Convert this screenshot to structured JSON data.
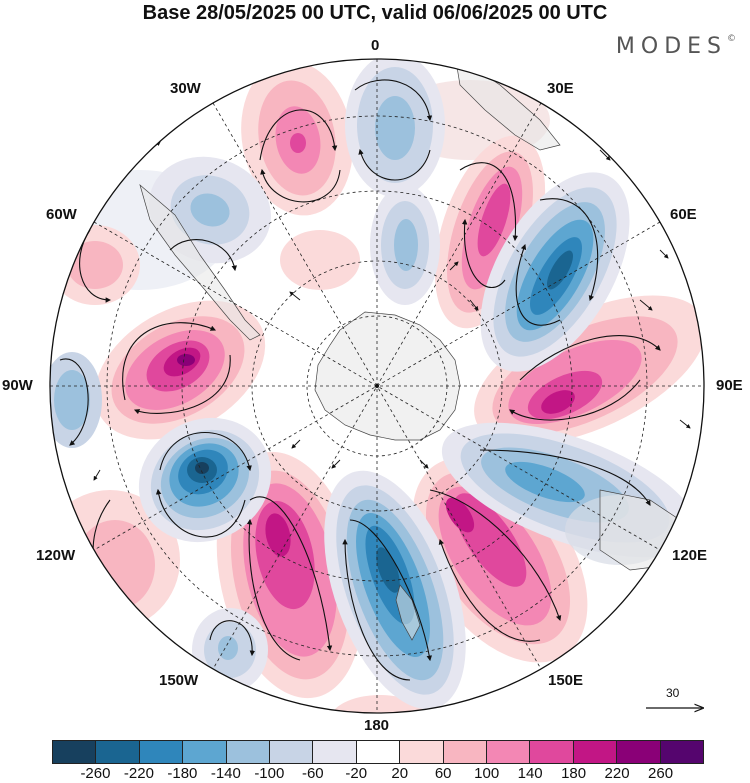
{
  "title": "Base 28/05/2025 00 UTC, valid 06/06/2025 00 UTC",
  "brand": "MODES",
  "brand_mark": "©",
  "longitude_labels": {
    "l0": "0",
    "l30e": "30E",
    "l60e": "60E",
    "l90e": "90E",
    "l120e": "120E",
    "l150e": "150E",
    "l180": "180",
    "l150w": "150W",
    "l120w": "120W",
    "l90w": "90W",
    "l60w": "60W",
    "l30w": "30W"
  },
  "reference_vector": {
    "value": "30"
  },
  "colorbar": {
    "colors": [
      "#17405e",
      "#1a6591",
      "#2f86bb",
      "#5da6d1",
      "#9cc1dd",
      "#c8d4e6",
      "#e6e6f0",
      "#ffffff",
      "#fbdada",
      "#f8b6c1",
      "#f387b4",
      "#e0489d",
      "#c21685",
      "#8a0077",
      "#55056e"
    ],
    "tick_labels": [
      "-260",
      "-220",
      "-180",
      "-140",
      "-100",
      "-60",
      "-20",
      "20",
      "60",
      "100",
      "140",
      "180",
      "220",
      "260"
    ]
  }
}
